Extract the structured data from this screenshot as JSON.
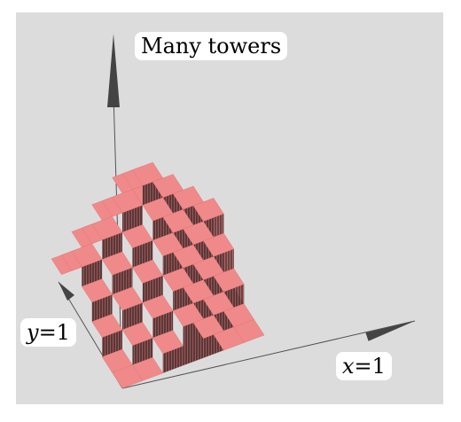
{
  "title": "Many towers",
  "axis_labels": {
    "x": {
      "var": "x",
      "value": "=1"
    },
    "y": {
      "var": "y",
      "value": "=1"
    }
  },
  "colors": {
    "background": "#dcdcdc",
    "top_face": "#f08a8a",
    "side_face": "#5a3636",
    "side_face_light": "#7a4646",
    "axis": "#555555"
  }
}
